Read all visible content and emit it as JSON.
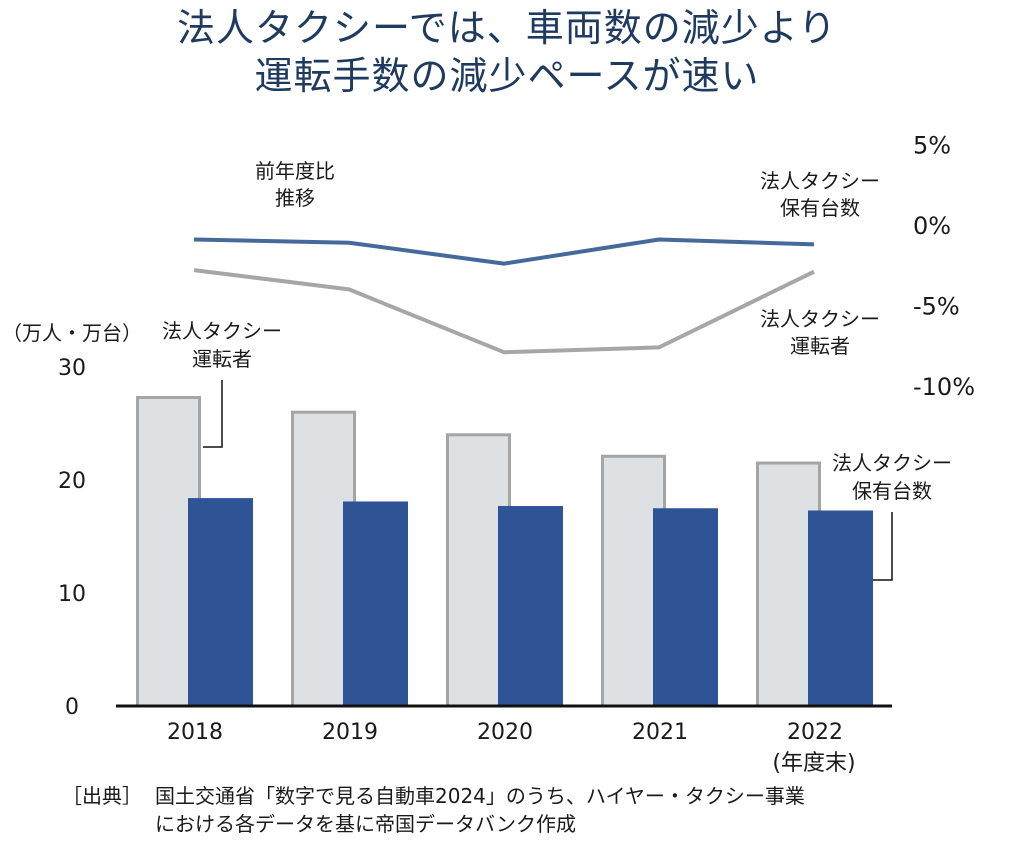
{
  "title": {
    "line1": "法人タクシーでは、車両数の減少より",
    "line2": "運転手数の減少ペースが速い"
  },
  "source": {
    "tag": "［出典］",
    "line1": "国土交通省「数字で見る自動車2024」のうち、ハイヤー・タクシー事業",
    "line2": "における各データを基に帝国データバンク作成"
  },
  "colors": {
    "title": "#1f3a5f",
    "vehicles_bar": "#2f5496",
    "drivers_bar_fill": "#dde1e4",
    "drivers_bar_border": "#a5a5a5",
    "vehicles_line": "#44699a",
    "drivers_line": "#a6a6a6"
  },
  "chart_data": [
    {
      "type": "bar",
      "categories": [
        "2018",
        "2019",
        "2020",
        "2021",
        "2022"
      ],
      "category_note": "(年度末)",
      "ylabel": "（万人・万台）",
      "ylim": [
        0,
        30
      ],
      "yticks": [
        "0",
        "10",
        "20",
        "30"
      ],
      "ytick_values": [
        0,
        10,
        20,
        30
      ],
      "grid": false,
      "series": [
        {
          "name": "法人タクシー運転者",
          "label_line1": "法人タクシー",
          "label_line2": "運転者",
          "values": [
            27.3,
            26.0,
            24.0,
            22.1,
            21.5
          ]
        },
        {
          "name": "法人タクシー保有台数",
          "label_line1": "法人タクシー",
          "label_line2": "保有台数",
          "values": [
            18.4,
            18.1,
            17.7,
            17.5,
            17.3
          ]
        }
      ]
    },
    {
      "type": "line",
      "title_line1": "前年度比",
      "title_line2": "推移",
      "categories": [
        "2018",
        "2019",
        "2020",
        "2021",
        "2022"
      ],
      "ylim": [
        -10,
        5
      ],
      "yticks": [
        "5%",
        "0%",
        "-5%",
        "-10%"
      ],
      "ytick_values": [
        5,
        0,
        -5,
        -10
      ],
      "grid": false,
      "series": [
        {
          "name": "法人タクシー保有台数",
          "label_line1": "法人タクシー",
          "label_line2": "保有台数",
          "values": [
            -0.9,
            -1.1,
            -2.4,
            -0.9,
            -1.2
          ]
        },
        {
          "name": "法人タクシー運転者",
          "label_line1": "法人タクシー",
          "label_line2": "運転者",
          "values": [
            -2.8,
            -4.0,
            -7.9,
            -7.6,
            -2.9
          ]
        }
      ]
    }
  ]
}
